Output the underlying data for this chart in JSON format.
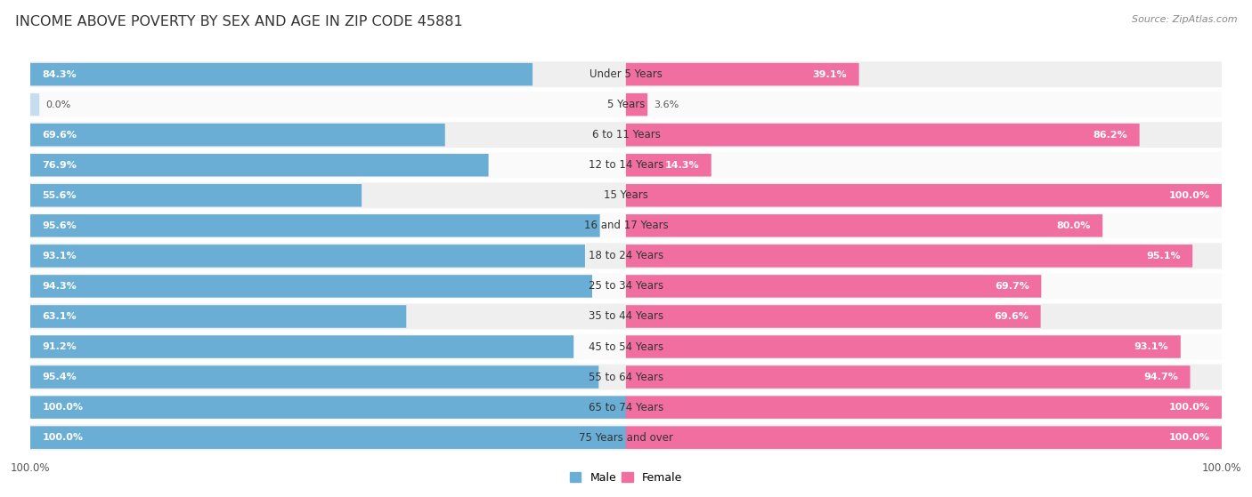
{
  "title": "INCOME ABOVE POVERTY BY SEX AND AGE IN ZIP CODE 45881",
  "source": "Source: ZipAtlas.com",
  "categories": [
    "Under 5 Years",
    "5 Years",
    "6 to 11 Years",
    "12 to 14 Years",
    "15 Years",
    "16 and 17 Years",
    "18 to 24 Years",
    "25 to 34 Years",
    "35 to 44 Years",
    "45 to 54 Years",
    "55 to 64 Years",
    "65 to 74 Years",
    "75 Years and over"
  ],
  "male": [
    84.3,
    0.0,
    69.6,
    76.9,
    55.6,
    95.6,
    93.1,
    94.3,
    63.1,
    91.2,
    95.4,
    100.0,
    100.0
  ],
  "female": [
    39.1,
    3.6,
    86.2,
    14.3,
    100.0,
    80.0,
    95.1,
    69.7,
    69.6,
    93.1,
    94.7,
    100.0,
    100.0
  ],
  "male_color": "#6aaed6",
  "female_color": "#f06fa0",
  "male_color_light": "#c6ddf0",
  "female_color_light": "#fad0e2",
  "bg_row_odd": "#efefef",
  "bg_row_even": "#fafafa",
  "title_fontsize": 11.5,
  "label_fontsize": 8.0,
  "cat_fontsize": 8.5,
  "tick_fontsize": 8.5,
  "legend_fontsize": 9
}
